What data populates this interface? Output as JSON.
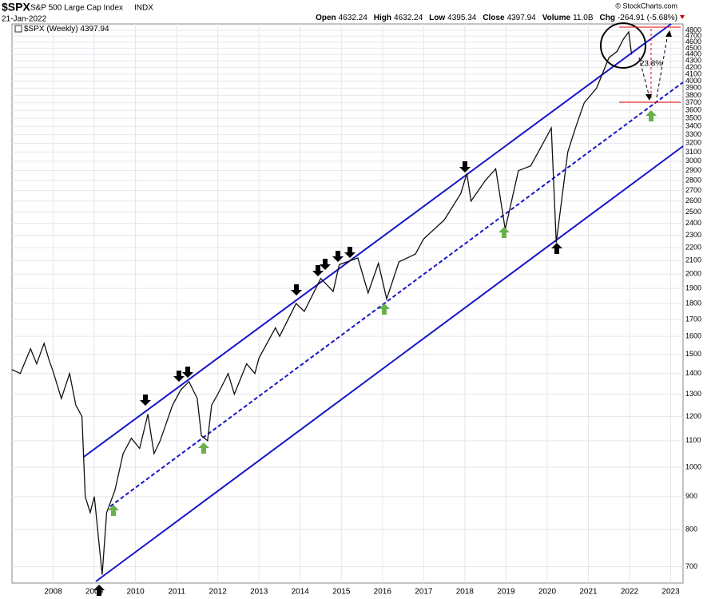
{
  "header": {
    "symbol": "$SPX",
    "name": "S&P 500 Large Cap Index",
    "exchange": "INDX",
    "date": "21-Jan-2022",
    "quote": [
      {
        "label": "Open",
        "value": "4632.24"
      },
      {
        "label": "High",
        "value": "4632.24"
      },
      {
        "label": "Low",
        "value": "4395.34"
      },
      {
        "label": "Close",
        "value": "4397.94"
      },
      {
        "label": "Volume",
        "value": "11.0B"
      },
      {
        "label": "Chg",
        "value": "-264.91 (-5.68%)"
      }
    ],
    "credit": "© StockCharts.com"
  },
  "chart_data": {
    "type": "line",
    "log_scale": true,
    "grid": true,
    "series": [
      {
        "name": "$SPX (Weekly)",
        "last": 4397.94,
        "color": "#111111",
        "x": [
          2007.0,
          2007.2,
          2007.45,
          2007.6,
          2007.78,
          2007.9,
          2008.0,
          2008.2,
          2008.4,
          2008.55,
          2008.7,
          2008.78,
          2008.9,
          2009.0,
          2009.19,
          2009.3,
          2009.5,
          2009.7,
          2009.9,
          2010.1,
          2010.3,
          2010.45,
          2010.6,
          2010.9,
          2011.1,
          2011.3,
          2011.5,
          2011.6,
          2011.75,
          2011.85,
          2012.0,
          2012.25,
          2012.4,
          2012.7,
          2012.9,
          2013.0,
          2013.4,
          2013.5,
          2013.9,
          2014.1,
          2014.5,
          2014.8,
          2014.95,
          2015.4,
          2015.65,
          2015.9,
          2016.1,
          2016.4,
          2016.8,
          2017.0,
          2017.5,
          2017.9,
          2018.05,
          2018.15,
          2018.5,
          2018.75,
          2018.98,
          2019.3,
          2019.6,
          2019.9,
          2020.1,
          2020.22,
          2020.5,
          2020.7,
          2020.9,
          2021.2,
          2021.5,
          2021.7,
          2021.85,
          2021.98,
          2022.05
        ],
        "values": [
          1420,
          1400,
          1530,
          1450,
          1560,
          1470,
          1410,
          1280,
          1400,
          1250,
          1200,
          900,
          850,
          900,
          680,
          850,
          920,
          1050,
          1110,
          1070,
          1210,
          1050,
          1100,
          1250,
          1320,
          1360,
          1280,
          1120,
          1100,
          1250,
          1300,
          1400,
          1300,
          1450,
          1400,
          1480,
          1650,
          1600,
          1800,
          1750,
          1970,
          1880,
          2070,
          2120,
          1870,
          2080,
          1830,
          2090,
          2150,
          2270,
          2430,
          2670,
          2870,
          2600,
          2800,
          2920,
          2350,
          2900,
          2950,
          3200,
          3380,
          2240,
          3100,
          3400,
          3700,
          3900,
          4350,
          4450,
          4650,
          4770,
          4398
        ]
      }
    ],
    "annotation": "23.8%",
    "xlim": [
      2007.0,
      2023.3
    ],
    "xticks": [
      2008,
      2009,
      2010,
      2011,
      2012,
      2013,
      2014,
      2015,
      2016,
      2017,
      2018,
      2019,
      2020,
      2021,
      2022,
      2023
    ],
    "ylim": [
      660,
      4910
    ],
    "yticks": [
      700,
      800,
      900,
      1000,
      1100,
      1200,
      1300,
      1400,
      1500,
      1600,
      1700,
      1800,
      1900,
      2000,
      2100,
      2200,
      2300,
      2400,
      2500,
      2600,
      2700,
      2800,
      2900,
      3000,
      3100,
      3200,
      3300,
      3400,
      3500,
      3600,
      3700,
      3800,
      3900,
      4000,
      4100,
      4200,
      4300,
      4400,
      4500,
      4600,
      4700,
      4800
    ]
  }
}
